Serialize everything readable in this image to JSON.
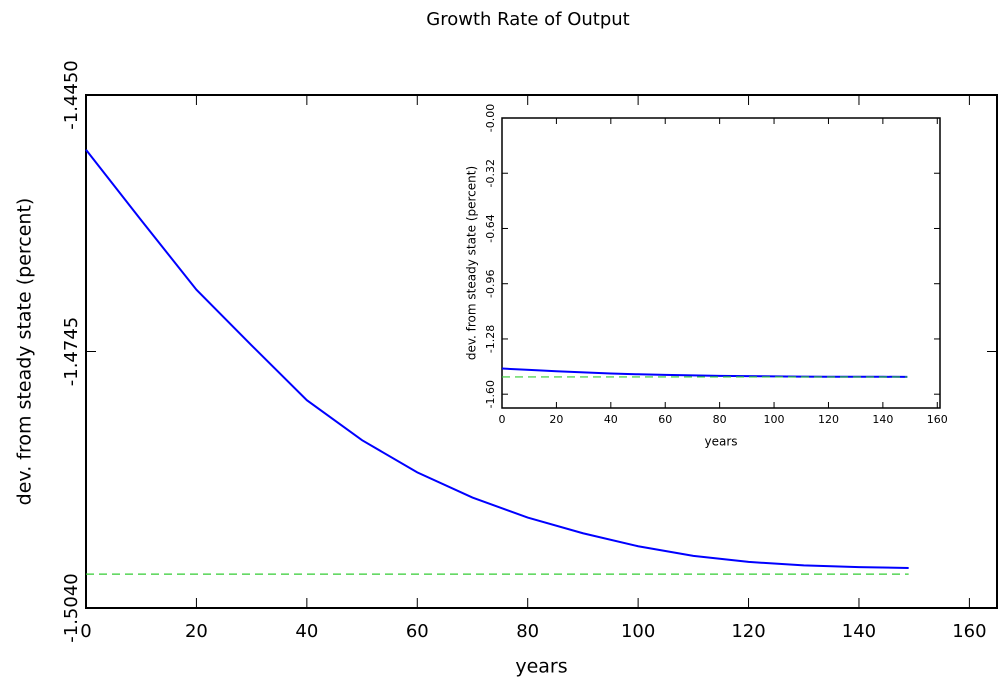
{
  "chart_data": [
    {
      "type": "line",
      "title": "Growth Rate of Output",
      "xlabel": "years",
      "ylabel": "dev. from steady state (percent)",
      "xlim": [
        0,
        165
      ],
      "xticks": [
        0,
        20,
        40,
        60,
        80,
        100,
        120,
        140,
        160
      ],
      "ylim": [
        -1.504,
        -1.445
      ],
      "yticks": [
        {
          "value": -1.445,
          "label": "-1.4450"
        },
        -1.4745,
        {
          "value": -1.504,
          "label": "-1.5040"
        }
      ],
      "series": [
        {
          "color": "#0000ff",
          "x": [
            0,
            10,
            20,
            30,
            40,
            50,
            60,
            70,
            80,
            90,
            100,
            110,
            120,
            130,
            140,
            149
          ],
          "values": [
            -1.4513,
            -1.4594,
            -1.4674,
            -1.4738,
            -1.4801,
            -1.4847,
            -1.4884,
            -1.4913,
            -1.4936,
            -1.4954,
            -1.4969,
            -1.498,
            -1.4987,
            -1.4991,
            -1.4993,
            -1.4994
          ],
          "dashed": false
        },
        {
          "color": "#33cc33",
          "x": [
            0,
            149
          ],
          "values": [
            -1.5001,
            -1.5001
          ],
          "dashed": true
        }
      ]
    },
    {
      "type": "line",
      "xlabel": "years",
      "ylabel": "dev. from steady state (percent)",
      "xlim": [
        0,
        161
      ],
      "xticks": [
        0,
        20,
        40,
        60,
        80,
        100,
        120,
        140,
        160
      ],
      "ylim": [
        -1.68,
        0
      ],
      "yticks": [
        {
          "value": 0,
          "label": "-0.00"
        },
        -0.32,
        -0.64,
        -0.96,
        -1.28,
        {
          "value": -1.6,
          "label": "-1.60"
        }
      ],
      "series": [
        {
          "color": "#0000ff",
          "x": [
            0,
            10,
            20,
            30,
            40,
            50,
            60,
            70,
            80,
            90,
            100,
            110,
            120,
            130,
            140,
            149
          ],
          "values": [
            -1.4513,
            -1.4594,
            -1.4674,
            -1.4738,
            -1.4801,
            -1.4847,
            -1.4884,
            -1.4913,
            -1.4936,
            -1.4954,
            -1.4969,
            -1.498,
            -1.4987,
            -1.4991,
            -1.4993,
            -1.4994
          ],
          "dashed": false
        },
        {
          "color": "#33cc33",
          "x": [
            0,
            149
          ],
          "values": [
            -1.5001,
            -1.5001
          ],
          "dashed": true
        }
      ]
    }
  ]
}
